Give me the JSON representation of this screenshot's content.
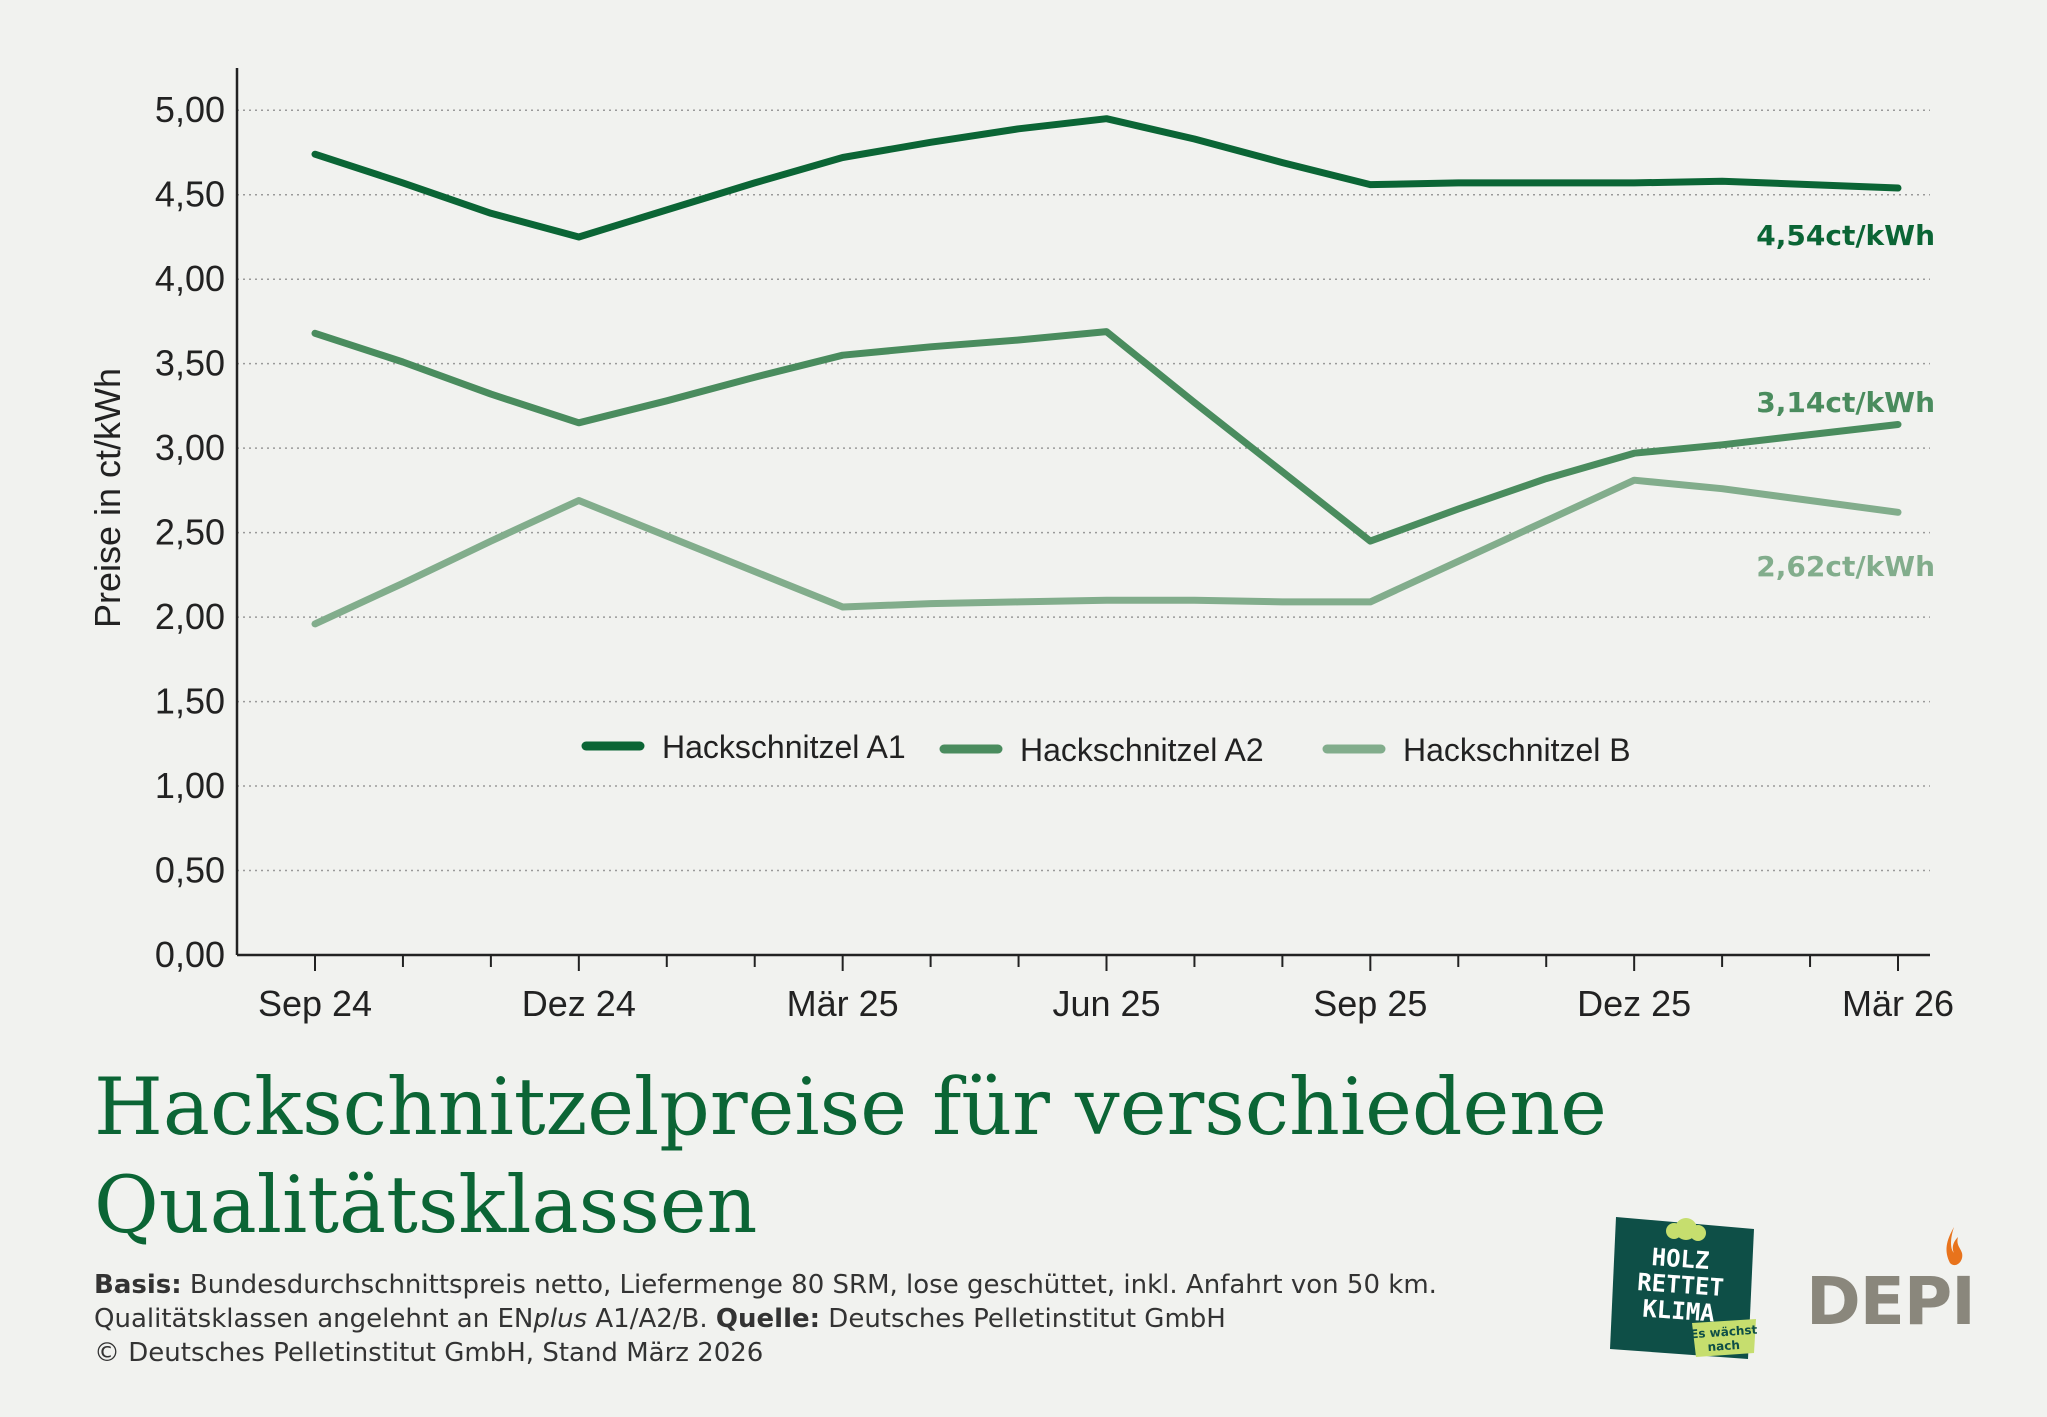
{
  "chart_data": {
    "type": "line",
    "ylabel": "Preise in ct/kWh",
    "xlabel": "",
    "ylim": [
      0,
      5.25
    ],
    "yticks": [
      "0,00",
      "0,50",
      "1,00",
      "1,50",
      "2,00",
      "2,50",
      "3,00",
      "3,50",
      "4,00",
      "4,50",
      "5,00"
    ],
    "x_labels": [
      "Sep 24",
      "Dez 24",
      "Mär 25",
      "Jun 25",
      "Sep 25",
      "Dez 25",
      "Mär 26"
    ],
    "x_months": [
      "Sep 24",
      "Okt 24",
      "Nov 24",
      "Dez 24",
      "Jan 25",
      "Feb 25",
      "Mär 25",
      "Apr 25",
      "Mai 25",
      "Jun 25",
      "Jul 25",
      "Aug 25",
      "Sep 25",
      "Okt 25",
      "Nov 25",
      "Dez 25",
      "Jan 26",
      "Feb 26",
      "Mär 26"
    ],
    "series": [
      {
        "name": "Hackschnitzel A1",
        "color": "#0b6535",
        "end_label": "4,54ct/kWh",
        "values": [
          4.74,
          4.57,
          4.39,
          4.25,
          4.41,
          4.57,
          4.72,
          4.81,
          4.89,
          4.95,
          4.83,
          4.69,
          4.56,
          4.57,
          4.57,
          4.57,
          4.58,
          4.56,
          4.54
        ]
      },
      {
        "name": "Hackschnitzel A2",
        "color": "#4a8c5e",
        "end_label": "3,14ct/kWh",
        "values": [
          3.68,
          3.51,
          3.32,
          3.15,
          3.28,
          3.42,
          3.55,
          3.6,
          3.64,
          3.69,
          3.27,
          2.86,
          2.45,
          2.64,
          2.82,
          2.97,
          3.02,
          3.08,
          3.14
        ]
      },
      {
        "name": "Hackschnitzel B",
        "color": "#82ad8c",
        "end_label": "2,62ct/kWh",
        "values": [
          1.96,
          2.2,
          2.45,
          2.69,
          2.48,
          2.27,
          2.06,
          2.08,
          2.09,
          2.1,
          2.1,
          2.09,
          2.09,
          2.33,
          2.57,
          2.81,
          2.76,
          2.69,
          2.62
        ]
      }
    ]
  },
  "title": "Hackschnitzelpreise für verschiedene Qualitätsklassen",
  "notes": {
    "basis_label": "Basis:",
    "basis_text": "Bundesdurchschnittspreis netto, Liefermenge 80 SRM, lose geschüttet, inkl. Anfahrt von 50 km. Qualitätsklassen angelehnt an EN",
    "enplus_italic": "plus",
    "basis_text_2": " A1/A2/B.",
    "quelle_label": "Quelle:",
    "quelle_text": "Deutsches Pelletinstitut GmbH",
    "copyright": "© Deutsches Pelletinstitut GmbH, Stand März 2026"
  },
  "logos": {
    "holz_line1": "HOLZ",
    "holz_line2": "RETTET",
    "holz_line3": "KLIMA",
    "holz_tag1": "Es wächst",
    "holz_tag2": "nach",
    "depi": "DEPI",
    "holz_bg": "#0e4f47",
    "holz_accent": "#c6de6e",
    "flame_color": "#e8731c"
  }
}
